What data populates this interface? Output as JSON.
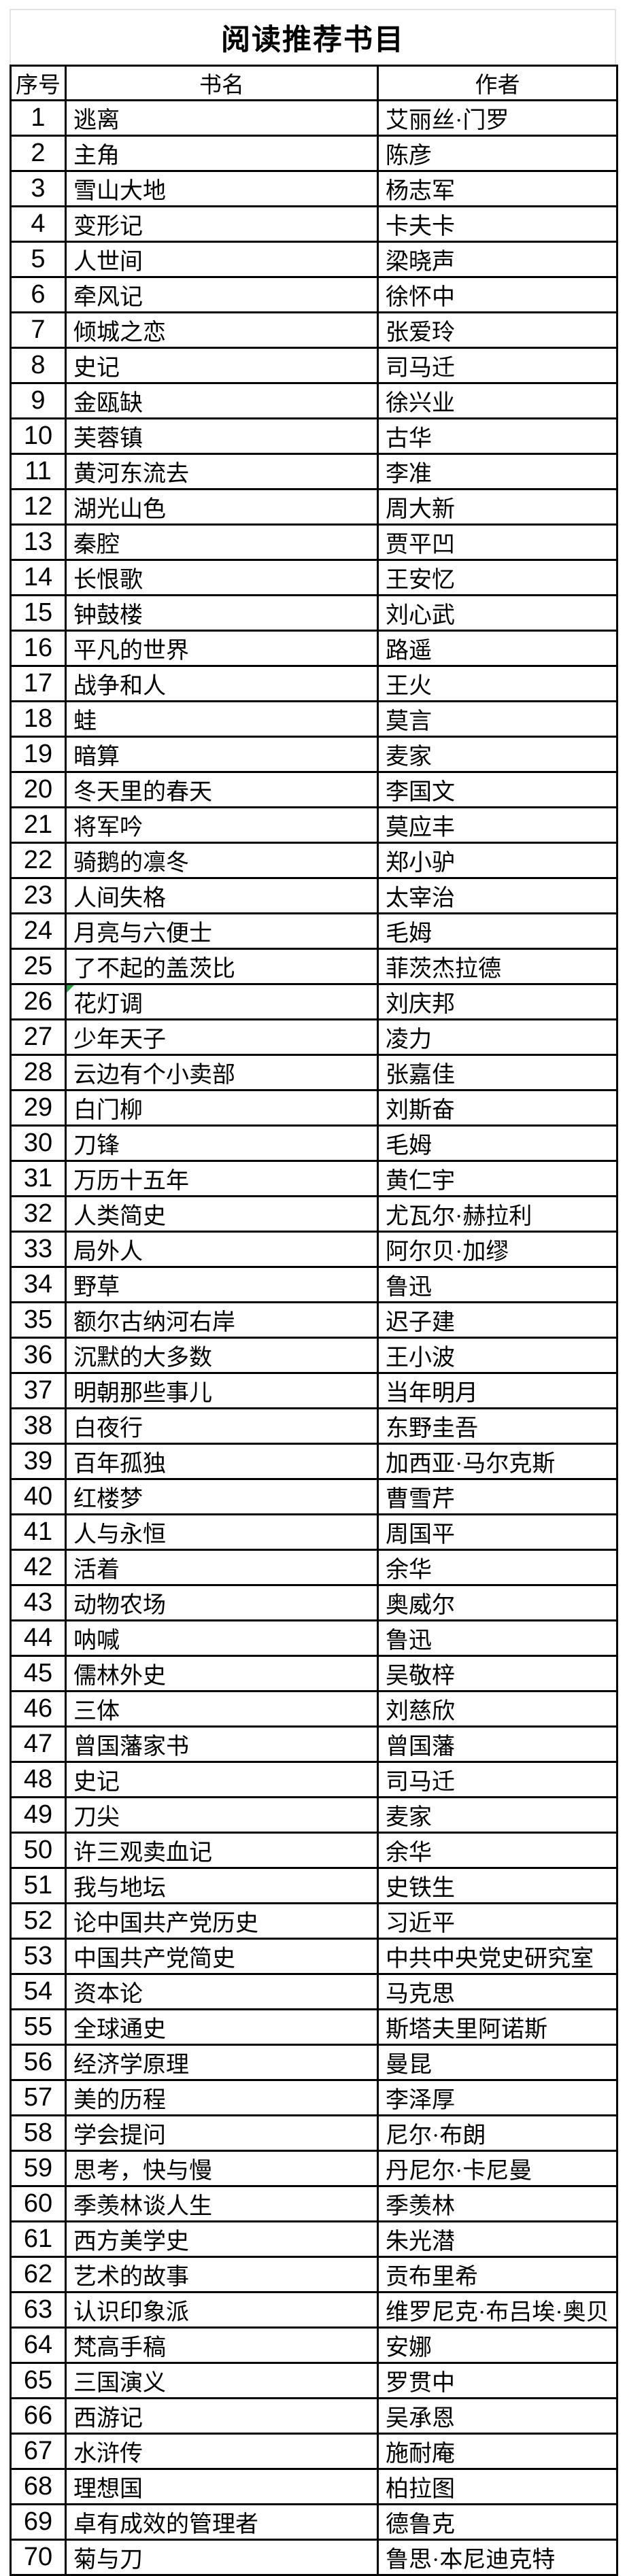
{
  "title": "阅读推荐书目",
  "headers": [
    "序号",
    "书名",
    "作者"
  ],
  "colors": {
    "border": "#000000",
    "sheet_edge": "#e3e3e3",
    "indicator_green": "#2f9e44",
    "text": "#000000",
    "background": "#ffffff"
  },
  "rows": [
    {
      "no": "1",
      "book": "逃离",
      "author": "艾丽丝·门罗"
    },
    {
      "no": "2",
      "book": "主角",
      "author": "陈彦"
    },
    {
      "no": "3",
      "book": "雪山大地",
      "author": "杨志军"
    },
    {
      "no": "4",
      "book": "变形记",
      "author": "卡夫卡"
    },
    {
      "no": "5",
      "book": "人世间",
      "author": "梁晓声"
    },
    {
      "no": "6",
      "book": "牵风记",
      "author": "徐怀中"
    },
    {
      "no": "7",
      "book": "倾城之恋",
      "author": "张爱玲"
    },
    {
      "no": "8",
      "book": "史记",
      "author": "司马迁"
    },
    {
      "no": "9",
      "book": "金瓯缺",
      "author": "徐兴业"
    },
    {
      "no": "10",
      "book": "芙蓉镇",
      "author": "古华"
    },
    {
      "no": "11",
      "book": "黄河东流去",
      "author": "李准"
    },
    {
      "no": "12",
      "book": "湖光山色",
      "author": "周大新"
    },
    {
      "no": "13",
      "book": "秦腔",
      "author": "贾平凹"
    },
    {
      "no": "14",
      "book": "长恨歌",
      "author": "王安忆"
    },
    {
      "no": "15",
      "book": "钟鼓楼",
      "author": "刘心武"
    },
    {
      "no": "16",
      "book": "平凡的世界",
      "author": "路遥"
    },
    {
      "no": "17",
      "book": "战争和人",
      "author": "王火"
    },
    {
      "no": "18",
      "book": "蛙",
      "author": "莫言"
    },
    {
      "no": "19",
      "book": "暗算",
      "author": "麦家"
    },
    {
      "no": "20",
      "book": "冬天里的春天",
      "author": "李国文"
    },
    {
      "no": "21",
      "book": "将军吟",
      "author": "莫应丰"
    },
    {
      "no": "22",
      "book": "骑鹅的凛冬",
      "author": "郑小驴"
    },
    {
      "no": "23",
      "book": "人间失格",
      "author": "太宰治"
    },
    {
      "no": "24",
      "book": "月亮与六便士",
      "author": "毛姆"
    },
    {
      "no": "25",
      "book": "了不起的盖茨比",
      "author": "菲茨杰拉德"
    },
    {
      "no": "26",
      "book": "花灯调",
      "author": "刘庆邦",
      "indicator": true
    },
    {
      "no": "27",
      "book": "少年天子",
      "author": "凌力"
    },
    {
      "no": "28",
      "book": "云边有个小卖部",
      "author": "张嘉佳"
    },
    {
      "no": "29",
      "book": "白门柳",
      "author": "刘斯奋"
    },
    {
      "no": "30",
      "book": "刀锋",
      "author": "毛姆"
    },
    {
      "no": "31",
      "book": "万历十五年",
      "author": "黄仁宇"
    },
    {
      "no": "32",
      "book": "人类简史",
      "author": "尤瓦尔·赫拉利"
    },
    {
      "no": "33",
      "book": "局外人",
      "author": "阿尔贝·加缪"
    },
    {
      "no": "34",
      "book": "野草",
      "author": "鲁迅"
    },
    {
      "no": "35",
      "book": "额尔古纳河右岸",
      "author": "迟子建"
    },
    {
      "no": "36",
      "book": "沉默的大多数",
      "author": "王小波"
    },
    {
      "no": "37",
      "book": "明朝那些事儿",
      "author": "当年明月"
    },
    {
      "no": "38",
      "book": "白夜行",
      "author": "东野圭吾"
    },
    {
      "no": "39",
      "book": "百年孤独",
      "author": "加西亚·马尔克斯"
    },
    {
      "no": "40",
      "book": "红楼梦",
      "author": "曹雪芹"
    },
    {
      "no": "41",
      "book": "人与永恒",
      "author": "周国平"
    },
    {
      "no": "42",
      "book": "活着",
      "author": "余华"
    },
    {
      "no": "43",
      "book": "动物农场",
      "author": "奥威尔"
    },
    {
      "no": "44",
      "book": "呐喊",
      "author": "鲁迅"
    },
    {
      "no": "45",
      "book": "儒林外史",
      "author": "吴敬梓"
    },
    {
      "no": "46",
      "book": "三体",
      "author": "刘慈欣"
    },
    {
      "no": "47",
      "book": "曾国藩家书",
      "author": "曾国藩"
    },
    {
      "no": "48",
      "book": "史记",
      "author": "司马迁"
    },
    {
      "no": "49",
      "book": "刀尖",
      "author": "麦家"
    },
    {
      "no": "50",
      "book": "许三观卖血记",
      "author": "余华"
    },
    {
      "no": "51",
      "book": "我与地坛",
      "author": "史铁生"
    },
    {
      "no": "52",
      "book": "论中国共产党历史",
      "author": "习近平"
    },
    {
      "no": "53",
      "book": "中国共产党简史",
      "author": "中共中央党史研究室"
    },
    {
      "no": "54",
      "book": "资本论",
      "author": "马克思"
    },
    {
      "no": "55",
      "book": "全球通史",
      "author": "斯塔夫里阿诺斯"
    },
    {
      "no": "56",
      "book": "经济学原理",
      "author": "曼昆"
    },
    {
      "no": "57",
      "book": "美的历程",
      "author": "李泽厚"
    },
    {
      "no": "58",
      "book": "学会提问",
      "author": "尼尔·布朗"
    },
    {
      "no": "59",
      "book": "思考，快与慢",
      "author": "丹尼尔·卡尼曼"
    },
    {
      "no": "60",
      "book": "季羡林谈人生",
      "author": "季羡林"
    },
    {
      "no": "61",
      "book": "西方美学史",
      "author": "朱光潜"
    },
    {
      "no": "62",
      "book": "艺术的故事",
      "author": "贡布里希"
    },
    {
      "no": "63",
      "book": "认识印象派",
      "author": "维罗尼克·布吕埃·奥贝"
    },
    {
      "no": "64",
      "book": "梵高手稿",
      "author": "安娜"
    },
    {
      "no": "65",
      "book": "三国演义",
      "author": "罗贯中"
    },
    {
      "no": "66",
      "book": "西游记",
      "author": "吴承恩"
    },
    {
      "no": "67",
      "book": "水浒传",
      "author": "施耐庵"
    },
    {
      "no": "68",
      "book": "理想国",
      "author": "柏拉图"
    },
    {
      "no": "69",
      "book": "卓有成效的管理者",
      "author": "德鲁克"
    },
    {
      "no": "70",
      "book": "菊与刀",
      "author": "鲁思·本尼迪克特"
    }
  ]
}
